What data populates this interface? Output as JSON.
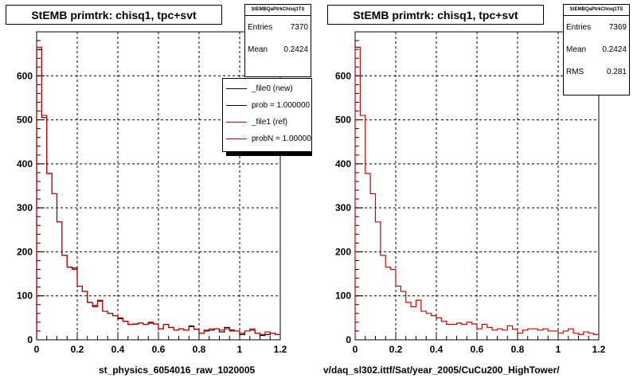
{
  "chart_data": [
    {
      "type": "histogram",
      "title": "StEMB primtrk: chisq1, tpc+svt",
      "xlabel": "st_physics_6054016_raw_1020005",
      "ylabel": "",
      "xlim": [
        0,
        1.2
      ],
      "ylim": [
        0,
        700
      ],
      "xticks": [
        "0",
        "0.2",
        "0.4",
        "0.6",
        "0.8",
        "1",
        "1.2"
      ],
      "yticks": [
        "0",
        "100",
        "200",
        "300",
        "400",
        "500",
        "600"
      ],
      "grid": true,
      "bin_width": 0.025,
      "series": [
        {
          "values": [
            660,
            505,
            378,
            332,
            268,
            192,
            165,
            163,
            122,
            110,
            85,
            78,
            88,
            65,
            60,
            55,
            48,
            42,
            35,
            36,
            38,
            35,
            38,
            36,
            25,
            35,
            28,
            22,
            25,
            22,
            30,
            24,
            15,
            20,
            22,
            25,
            18,
            28,
            22,
            20,
            12,
            20,
            22,
            15,
            10,
            12,
            15,
            12
          ],
          "color": "#000000"
        },
        {
          "values": [
            665,
            510,
            378,
            332,
            268,
            192,
            165,
            160,
            122,
            110,
            85,
            75,
            90,
            65,
            60,
            55,
            50,
            42,
            35,
            35,
            38,
            35,
            40,
            36,
            25,
            35,
            28,
            22,
            25,
            22,
            32,
            24,
            15,
            22,
            25,
            25,
            22,
            25,
            20,
            20,
            15,
            20,
            25,
            15,
            12,
            18,
            15,
            12
          ],
          "color": "#cc0000"
        }
      ],
      "stats": {
        "name": "StEMBQaPtrkChisq1TS",
        "entries_label": "Entries",
        "entries": "7370",
        "mean_label": "Mean",
        "mean": "0.2424"
      },
      "legend": {
        "position": "top-right",
        "entries": [
          {
            "label": "_file0 (new)",
            "color": "#000000"
          },
          {
            "label": "prob = 1.000000",
            "color": "#000000"
          },
          {
            "label": "_file1 (ref)",
            "color": "#cc0000"
          },
          {
            "label": "probN = 1.000000",
            "color": "#cc0000"
          }
        ]
      }
    },
    {
      "type": "histogram",
      "title": "StEMB primtrk: chisq1, tpc+svt",
      "xlabel": "v/daq_sl302.ittf/Sat/year_2005/CuCu200_HighTower/",
      "ylabel": "",
      "xlim": [
        0,
        1.2
      ],
      "ylim": [
        0,
        700
      ],
      "xticks": [
        "0",
        "0.2",
        "0.4",
        "0.6",
        "0.8",
        "1",
        "1.2"
      ],
      "yticks": [
        "0",
        "100",
        "200",
        "300",
        "400",
        "500",
        "600"
      ],
      "grid": true,
      "bin_width": 0.025,
      "series": [
        {
          "values": [
            665,
            510,
            378,
            332,
            268,
            192,
            165,
            160,
            122,
            110,
            85,
            75,
            90,
            65,
            60,
            55,
            50,
            42,
            35,
            35,
            38,
            35,
            40,
            36,
            25,
            35,
            28,
            22,
            25,
            22,
            32,
            24,
            15,
            22,
            25,
            25,
            22,
            25,
            20,
            20,
            15,
            20,
            25,
            15,
            12,
            18,
            15,
            12
          ],
          "color": "#cc0000"
        }
      ],
      "stats": {
        "name": "StEMBQaPtrkChisq1TS",
        "entries_label": "Entries",
        "entries": "7369",
        "mean_label": "Mean",
        "mean": "0.2424",
        "rms_label": "RMS",
        "rms": "0.281"
      }
    }
  ]
}
